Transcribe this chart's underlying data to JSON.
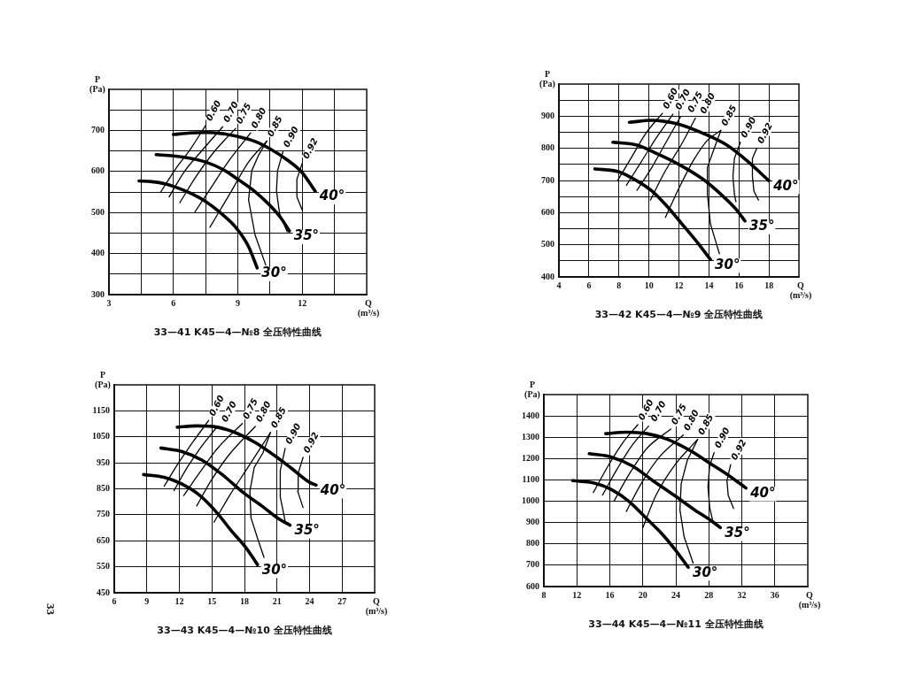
{
  "chart_data": [
    {
      "type": "line",
      "title": "33—41 K45—4—№8 全压特性曲线",
      "xlabel": "Q\n(m³/s)",
      "ylabel": "P\n(Pa)",
      "xlim": [
        3,
        15
      ],
      "ylim": [
        300,
        800
      ],
      "xticks": [
        3,
        {
          "value": 4.5,
          "label": null
        },
        6,
        {
          "value": 7.5,
          "label": null
        },
        9,
        {
          "value": 10.5,
          "label": null
        },
        12,
        {
          "value": 13.5,
          "label": null
        }
      ],
      "yticks": [
        300,
        {
          "value": 350,
          "label": null
        },
        400,
        {
          "value": 450,
          "label": null
        },
        500,
        {
          "value": 550,
          "label": null
        },
        600,
        {
          "value": 650,
          "label": null
        },
        700,
        {
          "value": 750,
          "label": null
        }
      ],
      "grid": true,
      "series": [
        {
          "name": "40°",
          "color": "#000000",
          "x": [
            6.0,
            6.8,
            7.5,
            8.3,
            9.0,
            9.8,
            10.5,
            11.3,
            12.0,
            12.6
          ],
          "values": [
            690,
            694,
            695,
            692,
            685,
            673,
            655,
            628,
            597,
            552
          ]
        },
        {
          "name": "35°",
          "color": "#000000",
          "x": [
            5.2,
            6.0,
            6.8,
            7.5,
            8.3,
            9.0,
            9.8,
            10.5,
            11.0,
            11.4
          ],
          "values": [
            641,
            638,
            632,
            623,
            605,
            581,
            551,
            517,
            487,
            455
          ]
        },
        {
          "name": "30°",
          "color": "#000000",
          "x": [
            4.4,
            5.0,
            5.6,
            6.2,
            6.8,
            7.5,
            8.2,
            8.9,
            9.5,
            9.9
          ],
          "values": [
            577,
            575,
            570,
            560,
            547,
            527,
            499,
            464,
            417,
            365
          ]
        },
        {
          "name": "0.60",
          "color": "#000000",
          "x": [
            5.4,
            6.1,
            6.8,
            7.5
          ],
          "values": [
            549,
            606,
            655,
            712
          ]
        },
        {
          "name": "0.70",
          "color": "#000000",
          "x": [
            5.8,
            6.5,
            7.4,
            8.3
          ],
          "values": [
            538,
            599,
            655,
            709
          ]
        },
        {
          "name": "0.75",
          "color": "#000000",
          "x": [
            6.3,
            7.1,
            7.9,
            8.9
          ],
          "values": [
            524,
            591,
            648,
            705
          ]
        },
        {
          "name": "0.80",
          "color": "#000000",
          "x": [
            7.0,
            7.7,
            8.5,
            9.6
          ],
          "values": [
            501,
            556,
            620,
            694
          ]
        },
        {
          "name": "0.85",
          "color": "#000000",
          "x": [
            7.7,
            8.7,
            9.5,
            10.35
          ],
          "values": [
            464,
            552,
            623,
            674
          ]
        },
        {
          "color": "#000000",
          "x": [
            10.3,
            9.8,
            9.5,
            9.65,
            9.95,
            10.35
          ],
          "values": [
            372,
            446,
            531,
            602,
            638,
            674
          ]
        },
        {
          "name": "0.90",
          "color": "#000000",
          "x": [
            11.3,
            10.95,
            10.8,
            10.85,
            11.1
          ],
          "values": [
            453,
            496,
            552,
            602,
            648
          ]
        },
        {
          "name": "0.92",
          "color": "#000000",
          "x": [
            12.0,
            11.75,
            11.75,
            12.0
          ],
          "values": [
            506,
            538,
            581,
            620
          ]
        }
      ]
    },
    {
      "type": "line",
      "title": "33—42 K45—4—№9 全压特性曲线",
      "xlabel": "Q\n(m³/s)",
      "ylabel": "P\n(Pa)",
      "xlim": [
        4,
        20
      ],
      "ylim": [
        400,
        1000
      ],
      "xticks": [
        4,
        6,
        8,
        10,
        12,
        14,
        16,
        18
      ],
      "yticks": [
        400,
        {
          "value": 450,
          "label": null
        },
        500,
        {
          "value": 550,
          "label": null
        },
        600,
        {
          "value": 650,
          "label": null
        },
        700,
        {
          "value": 750,
          "label": null
        },
        800,
        {
          "value": 850,
          "label": null
        },
        900,
        {
          "value": 950,
          "label": null
        }
      ],
      "grid": true,
      "series": [
        {
          "name": "40°",
          "color": "#000000",
          "x": [
            8.7,
            10.2,
            11.0,
            12.0,
            13.6,
            15.2,
            16.6,
            18.0
          ],
          "values": [
            881,
            887,
            884,
            875,
            847,
            810,
            759,
            699
          ]
        },
        {
          "name": "35°",
          "color": "#000000",
          "x": [
            7.6,
            9.2,
            10.6,
            12.0,
            13.6,
            14.8,
            15.8,
            16.4
          ],
          "values": [
            819,
            810,
            782,
            750,
            704,
            657,
            611,
            574
          ]
        },
        {
          "name": "30°",
          "color": "#000000",
          "x": [
            6.4,
            8.0,
            9.2,
            10.2,
            11.2,
            12.2,
            13.2,
            14.1
          ],
          "values": [
            736,
            727,
            699,
            667,
            620,
            565,
            509,
            454
          ]
        },
        {
          "name": "0.60",
          "color": "#000000",
          "x": [
            7.9,
            8.8,
            9.8,
            10.9
          ],
          "values": [
            699,
            769,
            847,
            909
          ]
        },
        {
          "name": "0.70",
          "color": "#000000",
          "x": [
            8.5,
            9.5,
            10.5,
            11.6
          ],
          "values": [
            685,
            759,
            833,
            906
          ]
        },
        {
          "name": "0.75",
          "color": "#000000",
          "x": [
            9.2,
            10.2,
            11.2,
            12.1
          ],
          "values": [
            669,
            741,
            824,
            898
          ]
        },
        {
          "name": "0.80",
          "color": "#000000",
          "x": [
            10.1,
            11.0,
            12.2,
            13.1
          ],
          "values": [
            639,
            722,
            815,
            894
          ]
        },
        {
          "name": "0.85",
          "color": "#000000",
          "x": [
            11.1,
            12.0,
            13.0,
            13.9,
            14.8
          ],
          "values": [
            585,
            676,
            765,
            825,
            856
          ]
        },
        {
          "color": "#000000",
          "x": [
            14.7,
            14.1,
            13.9,
            13.9,
            14.4,
            14.8
          ],
          "values": [
            472,
            565,
            657,
            741,
            806,
            856
          ]
        },
        {
          "name": "0.90",
          "color": "#000000",
          "x": [
            15.8,
            15.7,
            15.6,
            15.7,
            16.1
          ],
          "values": [
            634,
            657,
            713,
            769,
            819
          ]
        },
        {
          "name": "0.92",
          "color": "#000000",
          "x": [
            17.3,
            17.0,
            16.9,
            16.9,
            17.2
          ],
          "values": [
            639,
            667,
            713,
            769,
            801
          ]
        }
      ]
    },
    {
      "type": "line",
      "title": "33—43 K45—4—№10 全压特性曲线",
      "xlabel": "Q\n(m³/s)",
      "ylabel": "P\n(Pa)",
      "xlim": [
        6,
        30
      ],
      "ylim": [
        450,
        1250
      ],
      "xticks": [
        6,
        9,
        12,
        15,
        18,
        21,
        24,
        27
      ],
      "yticks": [
        450,
        550,
        650,
        750,
        850,
        950,
        1050,
        1150
      ],
      "grid": true,
      "annotations": [
        "33"
      ],
      "series": [
        {
          "name": "40°",
          "color": "#000000",
          "x": [
            11.8,
            13.6,
            15.5,
            17.4,
            19.0,
            20.7,
            22.3,
            24.0,
            24.6
          ],
          "values": [
            1087,
            1092,
            1087,
            1062,
            1028,
            980,
            930,
            875,
            864
          ]
        },
        {
          "name": "35°",
          "color": "#000000",
          "x": [
            10.3,
            12.2,
            14.1,
            16.0,
            17.9,
            19.6,
            21.2,
            22.2
          ],
          "values": [
            1007,
            994,
            960,
            903,
            835,
            784,
            733,
            710
          ]
        },
        {
          "name": "30°",
          "color": "#000000",
          "x": [
            8.7,
            10.6,
            12.2,
            13.9,
            15.5,
            16.8,
            18.2,
            19.2
          ],
          "values": [
            905,
            894,
            869,
            824,
            756,
            688,
            620,
            558
          ]
        },
        {
          "name": "0.60",
          "color": "#000000",
          "x": [
            10.6,
            11.9,
            13.3,
            14.7
          ],
          "values": [
            860,
            948,
            1033,
            1113
          ]
        },
        {
          "name": "0.70",
          "color": "#000000",
          "x": [
            11.5,
            12.8,
            14.1,
            15.5
          ],
          "values": [
            843,
            937,
            1016,
            1090
          ]
        },
        {
          "name": "0.75",
          "color": "#000000",
          "x": [
            12.4,
            13.9,
            15.5,
            17.8
          ],
          "values": [
            824,
            914,
            1005,
            1101
          ]
        },
        {
          "name": "0.80",
          "color": "#000000",
          "x": [
            13.6,
            14.9,
            16.6,
            19.0
          ],
          "values": [
            784,
            880,
            982,
            1090
          ]
        },
        {
          "name": "0.85",
          "color": "#000000",
          "x": [
            15.2,
            16.7,
            18.3,
            20.4
          ],
          "values": [
            722,
            829,
            931,
            1067
          ]
        },
        {
          "color": "#000000",
          "x": [
            19.8,
            19.2,
            18.6,
            18.5,
            18.9,
            19.7,
            20.4
          ],
          "values": [
            586,
            660,
            739,
            841,
            932,
            988,
            1067
          ]
        },
        {
          "name": "0.90",
          "color": "#000000",
          "x": [
            21.8,
            21.3,
            21.3,
            21.75
          ],
          "values": [
            715,
            818,
            920,
            1005
          ]
        },
        {
          "name": "0.92",
          "color": "#000000",
          "x": [
            23.4,
            22.9,
            22.95,
            23.4
          ],
          "values": [
            778,
            841,
            909,
            971
          ]
        }
      ]
    },
    {
      "type": "line",
      "title": "33—44 K45—4—№11 全压特性曲线",
      "xlabel": "Q\n(m³/s)",
      "ylabel": "P\n(Pa)",
      "xlim": [
        8,
        40
      ],
      "ylim": [
        600,
        1500
      ],
      "xticks": [
        8,
        12,
        16,
        20,
        24,
        28,
        32,
        36
      ],
      "yticks": [
        600,
        700,
        800,
        900,
        1000,
        1100,
        1200,
        1300,
        1400
      ],
      "grid": true,
      "series": [
        {
          "name": "40°",
          "color": "#000000",
          "x": [
            15.5,
            18.0,
            20.5,
            23.0,
            25.6,
            28.1,
            30.3,
            32.5
          ],
          "values": [
            1317,
            1324,
            1317,
            1290,
            1241,
            1179,
            1124,
            1062
          ]
        },
        {
          "name": "35°",
          "color": "#000000",
          "x": [
            13.5,
            16.2,
            18.7,
            21.2,
            23.8,
            26.3,
            28.5,
            29.4
          ],
          "values": [
            1223,
            1207,
            1166,
            1097,
            1028,
            959,
            903,
            876
          ]
        },
        {
          "name": "30°",
          "color": "#000000",
          "x": [
            11.5,
            14.0,
            16.2,
            18.3,
            20.5,
            22.3,
            23.8,
            25.5
          ],
          "values": [
            1097,
            1086,
            1055,
            1000,
            917,
            848,
            779,
            690
          ]
        },
        {
          "name": "0.60",
          "color": "#000000",
          "x": [
            14.0,
            15.8,
            17.6,
            19.4
          ],
          "values": [
            1041,
            1166,
            1276,
            1359
          ]
        },
        {
          "name": "0.70",
          "color": "#000000",
          "x": [
            15.1,
            16.9,
            18.7,
            20.7
          ],
          "values": [
            1028,
            1152,
            1262,
            1352
          ]
        },
        {
          "name": "0.75",
          "color": "#000000",
          "x": [
            16.5,
            18.3,
            20.5,
            23.4
          ],
          "values": [
            1000,
            1124,
            1248,
            1338
          ]
        },
        {
          "name": "0.80",
          "color": "#000000",
          "x": [
            18.0,
            19.8,
            22.0,
            24.9
          ],
          "values": [
            952,
            1083,
            1207,
            1310
          ]
        },
        {
          "name": "0.85",
          "color": "#000000",
          "x": [
            20.0,
            21.6,
            23.8,
            26.65
          ],
          "values": [
            876,
            1028,
            1166,
            1290
          ]
        },
        {
          "color": "#000000",
          "x": [
            26.1,
            25.0,
            24.5,
            24.65,
            25.4,
            26.65
          ],
          "values": [
            710,
            834,
            959,
            1083,
            1193,
            1290
          ]
        },
        {
          "name": "0.90",
          "color": "#000000",
          "x": [
            28.5,
            28.1,
            27.9,
            28.1,
            28.65
          ],
          "values": [
            903,
            972,
            1069,
            1166,
            1228
          ]
        },
        {
          "name": "0.92",
          "color": "#000000",
          "x": [
            31.0,
            30.35,
            30.2,
            30.65
          ],
          "values": [
            966,
            1028,
            1097,
            1172
          ]
        }
      ]
    }
  ]
}
